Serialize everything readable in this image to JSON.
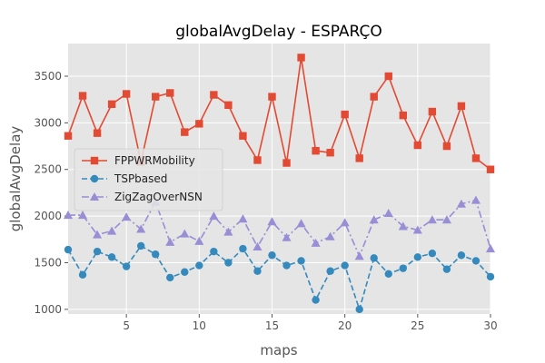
{
  "chart_data": {
    "type": "line",
    "title": "globalAvgDelay - ESPARÇO",
    "xlabel": "maps",
    "ylabel": "globalAvgDelay",
    "xlim": [
      1,
      30
    ],
    "ylim": [
      950,
      3850
    ],
    "xticks": [
      5,
      10,
      15,
      20,
      25,
      30
    ],
    "yticks": [
      1000,
      1500,
      2000,
      2500,
      3000,
      3500
    ],
    "grid": true,
    "legend_position": "center-left",
    "x": [
      1,
      2,
      3,
      4,
      5,
      6,
      7,
      8,
      9,
      10,
      11,
      12,
      13,
      14,
      15,
      16,
      17,
      18,
      19,
      20,
      21,
      22,
      23,
      24,
      25,
      26,
      27,
      28,
      29,
      30
    ],
    "series": [
      {
        "name": "FPPWRMobility",
        "color": "#E24A33",
        "marker": "square",
        "linestyle": "solid",
        "values": [
          2860,
          3290,
          2890,
          3200,
          3310,
          2580,
          3280,
          3320,
          2900,
          2990,
          3300,
          3190,
          2860,
          2600,
          3280,
          2570,
          3700,
          2700,
          2680,
          3090,
          2620,
          3280,
          3500,
          3080,
          2760,
          3120,
          2750,
          3180,
          2620,
          2500
        ]
      },
      {
        "name": "TSPbased",
        "color": "#348ABD",
        "marker": "circle",
        "linestyle": "dashed",
        "values": [
          1640,
          1370,
          1620,
          1560,
          1460,
          1680,
          1590,
          1340,
          1400,
          1470,
          1620,
          1500,
          1650,
          1410,
          1580,
          1470,
          1520,
          1100,
          1410,
          1470,
          1000,
          1550,
          1380,
          1440,
          1560,
          1600,
          1430,
          1580,
          1520,
          1350
        ]
      },
      {
        "name": "ZigZagOverNSN",
        "color": "#988ED5",
        "marker": "triangle",
        "linestyle": "dashdot",
        "values": [
          2010,
          2010,
          1800,
          1840,
          1990,
          1860,
          2150,
          1720,
          1810,
          1730,
          2000,
          1830,
          1970,
          1670,
          1940,
          1770,
          1920,
          1710,
          1780,
          1930,
          1570,
          1960,
          2030,
          1890,
          1850,
          1960,
          1960,
          2130,
          2170,
          1650
        ]
      }
    ]
  }
}
